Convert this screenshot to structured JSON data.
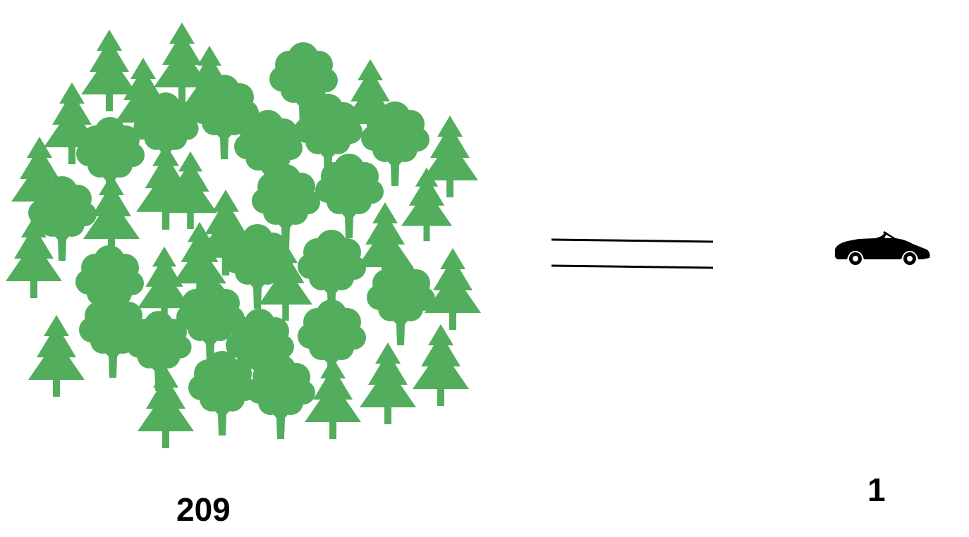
{
  "tree_group": {
    "icon": "forest-icon",
    "color": "#52ad5d",
    "count_label": "209"
  },
  "equals_sign": {
    "icon": "equals-icon",
    "color": "#000000"
  },
  "car_group": {
    "icon": "convertible-car-icon",
    "color": "#000000",
    "count_label": "1"
  }
}
